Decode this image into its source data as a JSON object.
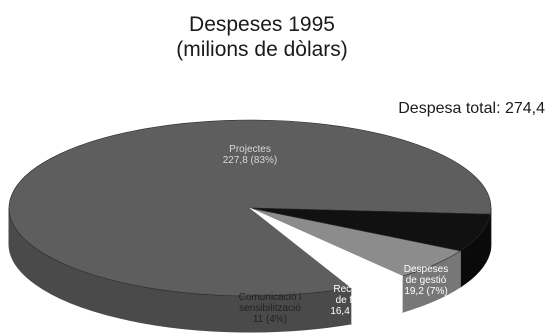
{
  "chart_data": {
    "type": "pie",
    "title": "Despeses 1995",
    "subtitle": "(milions de dòlars)",
    "total_label": "Despesa total: 274,4",
    "slices": [
      {
        "line1": "Projectes",
        "line2": "227,8 (83%)",
        "value": 227.8,
        "percent": 83,
        "color": "#5e5e5e",
        "side": "#4a4a4a",
        "text_color": "#d8d8d8"
      },
      {
        "line1": "Despeses",
        "line2": "de gestió",
        "line3": "19,2 (7%)",
        "value": 19.2,
        "percent": 7,
        "color": "#111111",
        "side": "#0a0a0a",
        "text_color": "#ffffff"
      },
      {
        "line1": "Recerca",
        "line2": "de fons",
        "line3": "16,4 (6%)",
        "value": 16.4,
        "percent": 6,
        "color": "#8c8c8c",
        "side": "#777777",
        "text_color": "#ffffff"
      },
      {
        "line1": "Comunicació i",
        "line2": "sensibilització",
        "line3": "11 (4%)",
        "value": 11.0,
        "percent": 4,
        "color": "#ffffff",
        "side": "#ffffff",
        "text_color": "#222222"
      }
    ]
  }
}
